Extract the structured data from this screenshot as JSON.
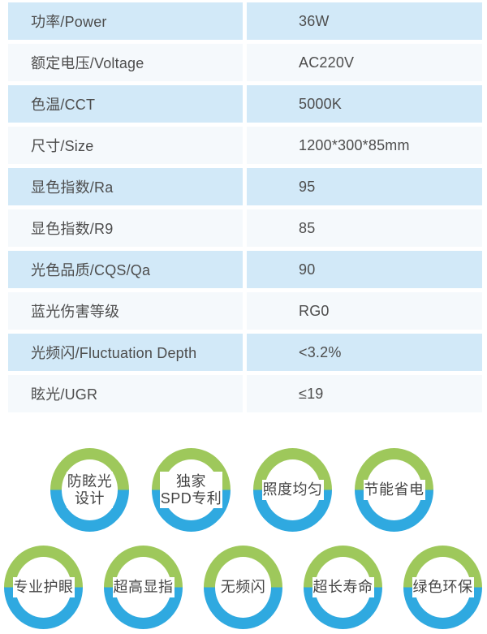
{
  "table": {
    "rows": [
      {
        "label": "功率/Power",
        "value": "36W"
      },
      {
        "label": "额定电压/Voltage",
        "value": "AC220V"
      },
      {
        "label": "色温/CCT",
        "value": "5000K"
      },
      {
        "label": "尺寸/Size",
        "value": "1200*300*85mm"
      },
      {
        "label": "显色指数/Ra",
        "value": "95"
      },
      {
        "label": "显色指数/R9",
        "value": "85"
      },
      {
        "label": "光色品质/CQS/Qa",
        "value": "90"
      },
      {
        "label": "蓝光伤害等级",
        "value": "RG0"
      },
      {
        "label": "光频闪/Fluctuation Depth",
        "value": "<3.2%"
      },
      {
        "label": "眩光/UGR",
        "value": "≤19"
      }
    ],
    "colors": {
      "row_blue": "#d2e9f8",
      "row_white": "#f5f9fc",
      "text": "#4d4d4d"
    }
  },
  "badges": {
    "colors": {
      "ring_top_green": "#9ec85b",
      "ring_bottom_blue": "#2fa9e0",
      "text": "#454545"
    },
    "row1": [
      {
        "label": "防眩光\n设计"
      },
      {
        "label": "独家\nSPD专利"
      },
      {
        "label": "照度均匀"
      },
      {
        "label": "节能省电"
      }
    ],
    "row2": [
      {
        "label": "专业护眼"
      },
      {
        "label": "超高显指"
      },
      {
        "label": "无频闪"
      },
      {
        "label": "超长寿命"
      },
      {
        "label": "绿色环保"
      }
    ]
  }
}
